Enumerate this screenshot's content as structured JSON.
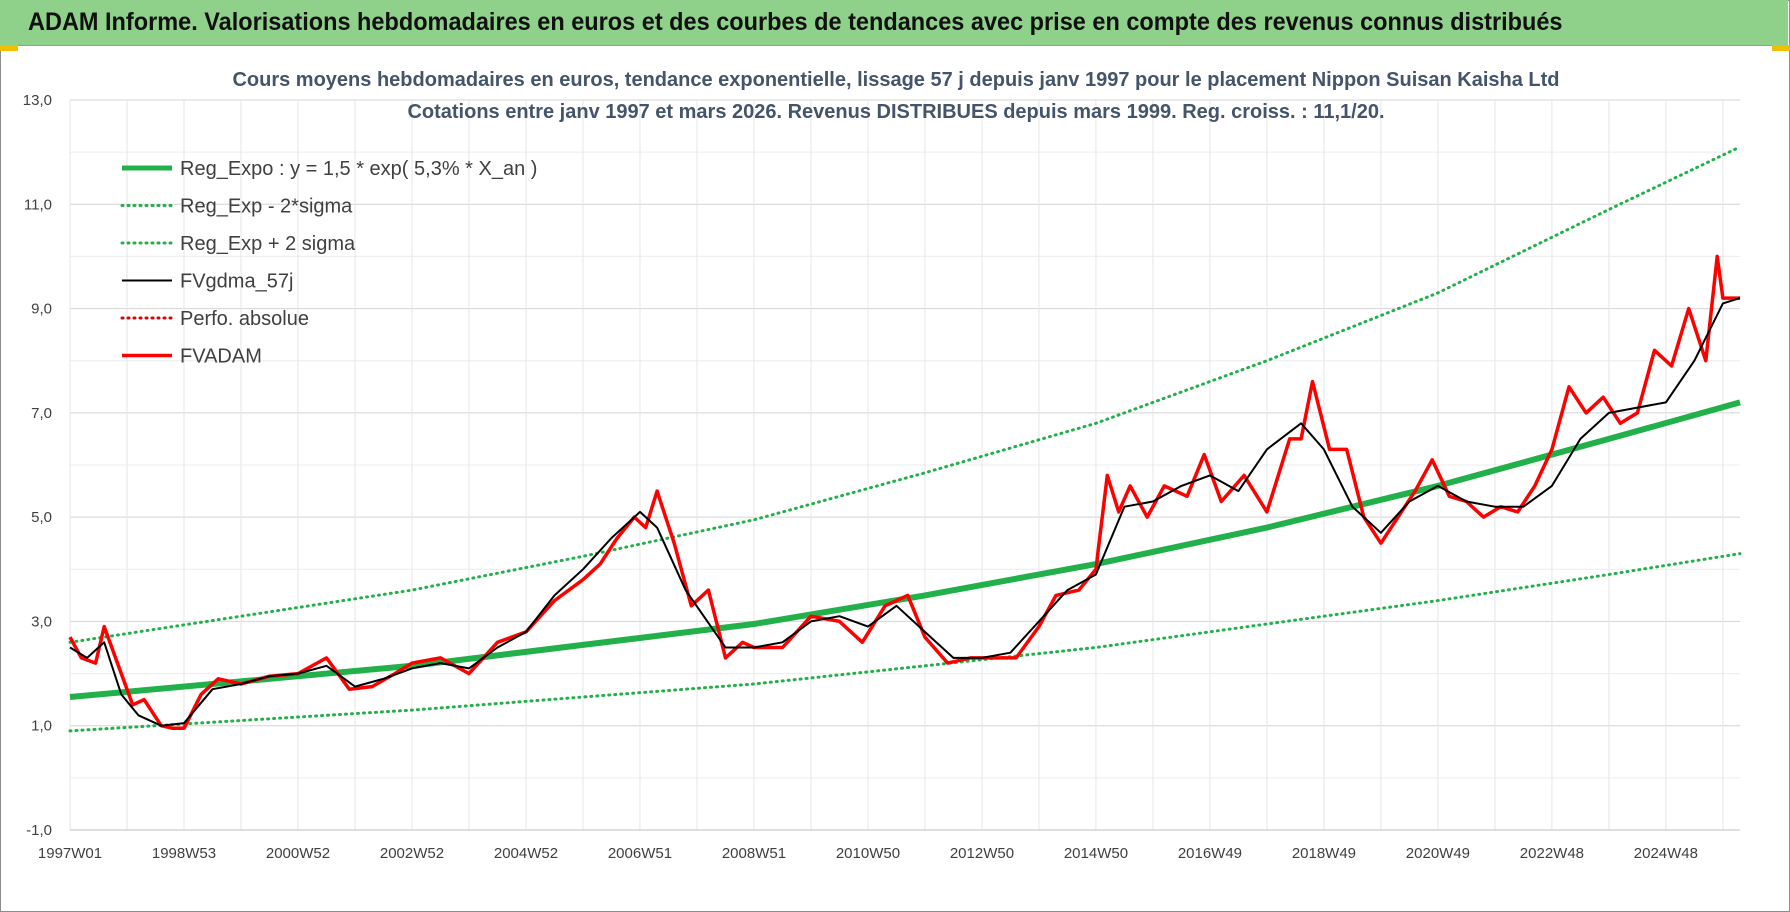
{
  "banner": {
    "title": "ADAM Informe. Valorisations hebdomadaires en euros et des courbes de tendances avec prise en compte des revenus connus distribués",
    "color": "#8fd08a"
  },
  "chart_data": {
    "type": "line",
    "title": "Cours moyens hebdomadaires en euros, tendance exponentielle, lissage 57 j depuis janv 1997 pour le placement Nippon Suisan Kaisha Ltd",
    "subtitle": "Cotations entre janv 1997 et mars 2026. Revenus DISTRIBUES depuis mars 1999. Reg. croiss. : 11,1/20.",
    "xlabel": "",
    "ylabel": "",
    "x_range": [
      1997.0,
      2026.3
    ],
    "ylim": [
      -1.0,
      13.0
    ],
    "yticks": [
      "-1,0",
      "1,0",
      "3,0",
      "5,0",
      "7,0",
      "9,0",
      "11,0",
      "13,0"
    ],
    "ytick_values": [
      -1,
      1,
      3,
      5,
      7,
      9,
      11,
      13
    ],
    "xticks": [
      "1997W01",
      "1998W53",
      "2000W52",
      "2002W52",
      "2004W52",
      "2006W51",
      "2008W51",
      "2010W50",
      "2012W50",
      "2014W50",
      "2016W49",
      "2018W49",
      "2020W49",
      "2022W48",
      "2024W48"
    ],
    "xtick_values": [
      1997.0,
      1999.0,
      2001.0,
      2003.0,
      2005.0,
      2007.0,
      2009.0,
      2011.0,
      2013.0,
      2015.0,
      2017.0,
      2019.0,
      2021.0,
      2023.0,
      2025.0
    ],
    "grid": true,
    "legend_position": "top-left",
    "series": [
      {
        "name": "Reg_Expo : y = 1,5 * exp( 5,3% *  X_an )",
        "style": "solid-thick",
        "color": "#22b04a",
        "x": [
          1997,
          2000,
          2003,
          2006,
          2009,
          2012,
          2015,
          2018,
          2021,
          2024,
          2026.3
        ],
        "values": [
          1.55,
          1.85,
          2.15,
          2.55,
          2.95,
          3.5,
          4.1,
          4.8,
          5.6,
          6.5,
          7.2
        ]
      },
      {
        "name": "Reg_Exp - 2*sigma",
        "style": "dotted",
        "color": "#22b04a",
        "x": [
          1997,
          2000,
          2003,
          2006,
          2009,
          2012,
          2015,
          2018,
          2021,
          2024,
          2026.3
        ],
        "values": [
          0.9,
          1.1,
          1.3,
          1.55,
          1.8,
          2.15,
          2.5,
          2.95,
          3.4,
          3.9,
          4.3
        ]
      },
      {
        "name": "Reg_Exp + 2 sigma",
        "style": "dotted",
        "color": "#22b04a",
        "x": [
          1997,
          2000,
          2003,
          2006,
          2009,
          2012,
          2015,
          2018,
          2021,
          2024,
          2026.3
        ],
        "values": [
          2.6,
          3.1,
          3.6,
          4.25,
          4.95,
          5.85,
          6.8,
          8.0,
          9.3,
          10.9,
          12.1
        ]
      },
      {
        "name": "FVgdma_57j",
        "style": "solid-thin",
        "color": "#000000",
        "x": [
          1997.0,
          1997.3,
          1997.6,
          1997.9,
          1998.2,
          1998.6,
          1999.0,
          1999.5,
          2000.0,
          2000.5,
          2001.0,
          2001.5,
          2002.0,
          2002.5,
          2003.0,
          2003.5,
          2004.0,
          2004.5,
          2005.0,
          2005.5,
          2006.0,
          2006.5,
          2007.0,
          2007.3,
          2007.8,
          2008.5,
          2009.0,
          2009.5,
          2010.0,
          2010.5,
          2011.0,
          2011.5,
          2012.0,
          2012.5,
          2013.0,
          2013.5,
          2014.0,
          2014.5,
          2015.0,
          2015.5,
          2016.0,
          2016.5,
          2017.0,
          2017.5,
          2018.0,
          2018.6,
          2019.0,
          2019.5,
          2020.0,
          2020.5,
          2021.0,
          2021.5,
          2022.0,
          2022.5,
          2023.0,
          2023.5,
          2024.0,
          2024.5,
          2025.0,
          2025.5,
          2026.0,
          2026.3
        ],
        "values": [
          2.5,
          2.3,
          2.6,
          1.6,
          1.2,
          1.0,
          1.05,
          1.7,
          1.8,
          1.95,
          2.0,
          2.15,
          1.75,
          1.9,
          2.1,
          2.2,
          2.1,
          2.5,
          2.8,
          3.5,
          4.0,
          4.6,
          5.1,
          4.8,
          3.6,
          2.5,
          2.5,
          2.6,
          3.0,
          3.1,
          2.9,
          3.3,
          2.8,
          2.3,
          2.3,
          2.4,
          3.0,
          3.6,
          3.9,
          5.2,
          5.3,
          5.6,
          5.8,
          5.5,
          6.3,
          6.8,
          6.3,
          5.2,
          4.7,
          5.3,
          5.6,
          5.3,
          5.2,
          5.2,
          5.6,
          6.5,
          7.0,
          7.1,
          7.2,
          8.0,
          9.1,
          9.2
        ]
      },
      {
        "name": "Perfo. absolue",
        "style": "dotted",
        "color": "#e00000",
        "x": [],
        "values": []
      },
      {
        "name": "FVADAM",
        "style": "solid-thick",
        "color": "#ff0000",
        "x": [
          1997.0,
          1997.2,
          1997.45,
          1997.6,
          1997.9,
          1998.1,
          1998.3,
          1998.6,
          1998.8,
          1999.0,
          1999.3,
          1999.6,
          2000.0,
          2000.5,
          2001.0,
          2001.5,
          2001.9,
          2002.3,
          2002.7,
          2003.0,
          2003.5,
          2004.0,
          2004.5,
          2005.0,
          2005.5,
          2006.0,
          2006.3,
          2006.6,
          2006.9,
          2007.1,
          2007.3,
          2007.6,
          2007.9,
          2008.2,
          2008.5,
          2008.8,
          2009.0,
          2009.5,
          2010.0,
          2010.5,
          2010.9,
          2011.3,
          2011.7,
          2012.0,
          2012.4,
          2012.8,
          2013.2,
          2013.6,
          2014.0,
          2014.3,
          2014.7,
          2015.0,
          2015.2,
          2015.4,
          2015.6,
          2015.9,
          2016.2,
          2016.6,
          2016.9,
          2017.2,
          2017.6,
          2018.0,
          2018.4,
          2018.6,
          2018.8,
          2019.1,
          2019.4,
          2019.7,
          2020.0,
          2020.3,
          2020.6,
          2020.9,
          2021.2,
          2021.5,
          2021.8,
          2022.1,
          2022.4,
          2022.7,
          2023.0,
          2023.3,
          2023.6,
          2023.9,
          2024.2,
          2024.5,
          2024.8,
          2025.1,
          2025.4,
          2025.7,
          2025.9,
          2026.0,
          2026.15,
          2026.3
        ],
        "values": [
          2.7,
          2.3,
          2.2,
          2.9,
          2.0,
          1.4,
          1.5,
          1.0,
          0.95,
          0.95,
          1.6,
          1.9,
          1.8,
          1.95,
          2.0,
          2.3,
          1.7,
          1.75,
          2.0,
          2.2,
          2.3,
          2.0,
          2.6,
          2.8,
          3.4,
          3.8,
          4.1,
          4.6,
          5.0,
          4.8,
          5.5,
          4.5,
          3.3,
          3.6,
          2.3,
          2.6,
          2.5,
          2.5,
          3.1,
          3.0,
          2.6,
          3.3,
          3.5,
          2.7,
          2.2,
          2.3,
          2.3,
          2.3,
          2.9,
          3.5,
          3.6,
          4.0,
          5.8,
          5.1,
          5.6,
          5.0,
          5.6,
          5.4,
          6.2,
          5.3,
          5.8,
          5.1,
          6.5,
          6.5,
          7.6,
          6.3,
          6.3,
          5.0,
          4.5,
          5.0,
          5.5,
          6.1,
          5.4,
          5.3,
          5.0,
          5.2,
          5.1,
          5.6,
          6.3,
          7.5,
          7.0,
          7.3,
          6.8,
          7.0,
          8.2,
          7.9,
          9.0,
          8.0,
          10.0,
          9.2,
          9.2,
          9.2
        ]
      }
    ]
  }
}
